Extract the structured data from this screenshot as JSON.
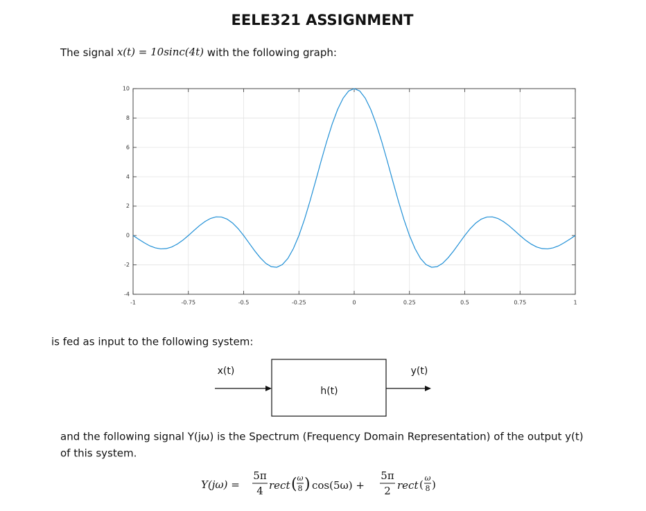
{
  "header": {
    "title": "EELE321 ASSIGNMENT"
  },
  "intro": {
    "prefix": "The signal ",
    "math": "x(t) = 10sinc(4t)",
    "suffix": " with the following graph:"
  },
  "chart_data": {
    "type": "line",
    "x": [
      -1,
      -0.975,
      -0.95,
      -0.925,
      -0.9,
      -0.875,
      -0.85,
      -0.825,
      -0.8,
      -0.775,
      -0.75,
      -0.725,
      -0.7,
      -0.675,
      -0.65,
      -0.625,
      -0.6,
      -0.575,
      -0.55,
      -0.525,
      -0.5,
      -0.475,
      -0.45,
      -0.425,
      -0.4,
      -0.375,
      -0.35,
      -0.325,
      -0.3,
      -0.275,
      -0.25,
      -0.225,
      -0.2,
      -0.175,
      -0.15,
      -0.125,
      -0.1,
      -0.075,
      -0.05,
      -0.025,
      0,
      0.025,
      0.05,
      0.075,
      0.1,
      0.125,
      0.15,
      0.175,
      0.2,
      0.225,
      0.25,
      0.275,
      0.3,
      0.325,
      0.35,
      0.375,
      0.4,
      0.425,
      0.45,
      0.475,
      0.5,
      0.525,
      0.55,
      0.575,
      0.6,
      0.625,
      0.65,
      0.675,
      0.7,
      0.725,
      0.75,
      0.775,
      0.8,
      0.825,
      0.85,
      0.875,
      0.9,
      0.925,
      0.95,
      0.975,
      1
    ],
    "values": [
      0,
      -0.25,
      -0.49,
      -0.7,
      -0.84,
      -0.91,
      -0.89,
      -0.78,
      -0.58,
      -0.32,
      0,
      0.34,
      0.67,
      0.95,
      1.16,
      1.27,
      1.26,
      1.12,
      0.85,
      0.47,
      0,
      -0.52,
      -1.04,
      -1.51,
      -1.89,
      -2.12,
      -2.16,
      -1.98,
      -1.56,
      -0.89,
      0,
      1.09,
      2.34,
      3.68,
      5.05,
      6.37,
      7.57,
      8.58,
      9.35,
      9.84,
      10,
      9.84,
      9.35,
      8.58,
      7.57,
      6.37,
      5.05,
      3.68,
      2.34,
      1.09,
      0,
      -0.89,
      -1.56,
      -1.98,
      -2.16,
      -2.12,
      -1.89,
      -1.51,
      -1.04,
      -0.52,
      0,
      0.47,
      0.85,
      1.12,
      1.26,
      1.27,
      1.16,
      0.95,
      0.67,
      0.34,
      0,
      -0.32,
      -0.58,
      -0.78,
      -0.89,
      -0.91,
      -0.84,
      -0.7,
      -0.49,
      -0.25,
      0
    ],
    "color": "#1f8fd6",
    "xlim": [
      -1,
      1
    ],
    "xticks": [
      -1,
      -0.75,
      -0.5,
      -0.25,
      0,
      0.25,
      0.5,
      0.75,
      1
    ],
    "ylim": [
      -4,
      10
    ],
    "yticks": [
      -4,
      -2,
      0,
      2,
      4,
      6,
      8,
      10
    ],
    "grid": true
  },
  "system_intro": "is fed as input to the following system:",
  "diagram": {
    "input": "x(t)",
    "block": "h(t)",
    "output": "y(t)"
  },
  "paragraph": {
    "lines": [
      "and the following signal Y(jω) is the Spectrum (Frequency Domain Representation) of the output y(t)",
      "of this system."
    ]
  },
  "equation": {
    "lhs": "Y(jω) =",
    "term1": {
      "num": "5π",
      "den": "4",
      "func": "rect",
      "arg_num": "ω",
      "arg_den": "8"
    },
    "mid": "cos(5ω) +",
    "term2": {
      "num": "5π",
      "den": "2",
      "func": "rect",
      "arg_num": "ω",
      "arg_den": "8"
    }
  }
}
